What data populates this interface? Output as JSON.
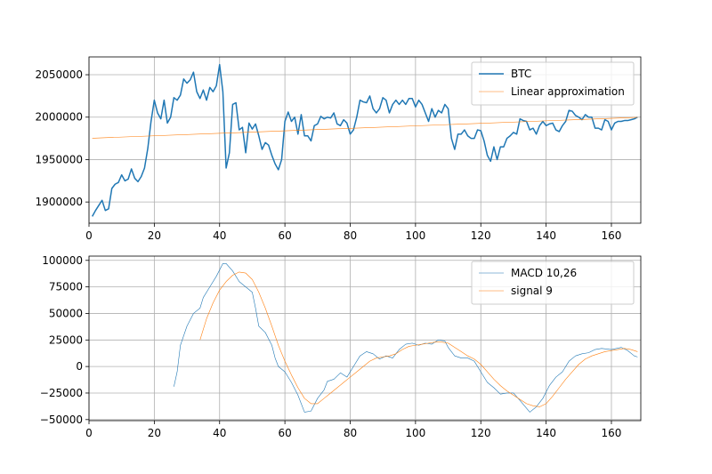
{
  "chart_data": [
    {
      "type": "line",
      "grid": true,
      "legend": "upper right",
      "xlim": [
        0,
        169
      ],
      "xticks": [
        0,
        20,
        40,
        60,
        80,
        100,
        120,
        140,
        160
      ],
      "ylim": [
        1875000,
        2071000
      ],
      "yticks": [
        1900000,
        1950000,
        2000000,
        2050000
      ],
      "series": [
        {
          "name": "BTC",
          "color": "#1f77b4",
          "x": [
            1,
            2,
            3,
            4,
            5,
            6,
            7,
            8,
            9,
            10,
            11,
            12,
            13,
            14,
            15,
            16,
            17,
            18,
            19,
            20,
            21,
            22,
            23,
            24,
            25,
            26,
            27,
            28,
            29,
            30,
            31,
            32,
            33,
            34,
            35,
            36,
            37,
            38,
            39,
            40,
            41,
            42,
            43,
            44,
            45,
            46,
            47,
            48,
            49,
            50,
            51,
            52,
            53,
            54,
            55,
            56,
            57,
            58,
            59,
            60,
            61,
            62,
            63,
            64,
            65,
            66,
            67,
            68,
            69,
            70,
            71,
            72,
            73,
            74,
            75,
            76,
            77,
            78,
            79,
            80,
            81,
            82,
            83,
            84,
            85,
            86,
            87,
            88,
            89,
            90,
            91,
            92,
            93,
            94,
            95,
            96,
            97,
            98,
            99,
            100,
            101,
            102,
            103,
            104,
            105,
            106,
            107,
            108,
            109,
            110,
            111,
            112,
            113,
            114,
            115,
            116,
            117,
            118,
            119,
            120,
            121,
            122,
            123,
            124,
            125,
            126,
            127,
            128,
            129,
            130,
            131,
            132,
            133,
            134,
            135,
            136,
            137,
            138,
            139,
            140,
            141,
            142,
            143,
            144,
            145,
            146,
            147,
            148,
            149,
            150,
            151,
            152,
            153,
            154,
            155,
            156,
            157,
            158,
            159,
            160,
            161,
            162,
            163,
            164,
            165,
            166,
            167,
            168
          ],
          "values": [
            1883000,
            1890000,
            1896000,
            1902000,
            1890000,
            1892000,
            1916000,
            1921000,
            1923000,
            1932000,
            1925000,
            1927000,
            1939000,
            1928000,
            1924000,
            1930000,
            1940000,
            1963000,
            1995000,
            2020000,
            2005000,
            1998000,
            2020000,
            1993000,
            2000000,
            2023000,
            2020000,
            2026000,
            2045000,
            2040000,
            2044000,
            2053000,
            2030000,
            2022000,
            2032000,
            2020000,
            2035000,
            2030000,
            2037000,
            2062000,
            2030000,
            1940000,
            1958000,
            2015000,
            2017000,
            1985000,
            1988000,
            1958000,
            1993000,
            1986000,
            1992000,
            1978000,
            1962000,
            1970000,
            1967000,
            1955000,
            1945000,
            1938000,
            1950000,
            1995000,
            2006000,
            1995000,
            2000000,
            1980000,
            2003000,
            1978000,
            1978000,
            1972000,
            1990000,
            1992000,
            2001000,
            1998000,
            2000000,
            1999000,
            2005000,
            1992000,
            1990000,
            1997000,
            1993000,
            1980000,
            1985000,
            2000000,
            2020000,
            2018000,
            2017000,
            2025000,
            2010000,
            2005000,
            2010000,
            2023000,
            2020000,
            2005000,
            2015000,
            2020000,
            2015000,
            2020000,
            2015000,
            2022000,
            2022000,
            2012000,
            2020000,
            2015000,
            2005000,
            1995000,
            2010000,
            2000000,
            2008000,
            2005000,
            2015000,
            2010000,
            1975000,
            1962000,
            1980000,
            1980000,
            1985000,
            1978000,
            1975000,
            1975000,
            1985000,
            1984000,
            1972000,
            1955000,
            1948000,
            1965000,
            1950000,
            1965000,
            1965000,
            1975000,
            1978000,
            1982000,
            1980000,
            1998000,
            1996000,
            1995000,
            1985000,
            1987000,
            1980000,
            1990000,
            1995000,
            1990000,
            1992000,
            1993000,
            1985000,
            1983000,
            1990000,
            1995000,
            2008000,
            2007000,
            2002000,
            2000000,
            1997000,
            2003000,
            2000000,
            2000000,
            1987000,
            1987000,
            1985000,
            1997000,
            1995000,
            1985000,
            1993000,
            1995000,
            1995000,
            1996000,
            1996000,
            1997000,
            1998000,
            2000000
          ]
        },
        {
          "name": "Linear approximation",
          "color": "#ff7f0e",
          "x": [
            1,
            168
          ],
          "values": [
            1975200,
            1999800
          ]
        }
      ]
    },
    {
      "type": "line",
      "grid": true,
      "legend": "upper right",
      "xlim": [
        0,
        169
      ],
      "xticks": [
        0,
        20,
        40,
        60,
        80,
        100,
        120,
        140,
        160
      ],
      "ylim": [
        -51000,
        104000
      ],
      "yticks": [
        {
          "value": -50000,
          "label": "−50000"
        },
        {
          "value": -25000,
          "label": "−25000"
        },
        0,
        25000,
        50000,
        75000,
        100000
      ],
      "series": [
        {
          "name": "MACD 10,26",
          "color": "#1f77b4",
          "x": [
            26,
            27,
            28,
            30,
            32,
            34,
            35,
            37,
            39,
            41,
            42,
            44,
            46,
            48,
            50,
            51,
            52,
            54,
            56,
            57,
            58,
            60,
            62,
            64,
            66,
            68,
            70,
            72,
            73,
            75,
            77,
            79,
            81,
            83,
            85,
            87,
            89,
            91,
            93,
            95,
            97,
            99,
            101,
            103,
            105,
            107,
            109,
            110,
            112,
            114,
            116,
            118,
            120,
            122,
            124,
            126,
            128,
            130,
            132,
            135,
            137,
            139,
            141,
            143,
            145,
            147,
            149,
            151,
            153,
            155,
            157,
            160,
            163,
            165,
            167,
            168
          ],
          "values": [
            -19000,
            -5000,
            20000,
            38000,
            50000,
            55000,
            65000,
            75000,
            85000,
            97000,
            97000,
            90000,
            80000,
            75000,
            70000,
            55000,
            38000,
            32000,
            20000,
            8000,
            0,
            -5000,
            -15000,
            -27000,
            -43000,
            -42000,
            -30000,
            -22000,
            -14000,
            -12000,
            -6000,
            -10000,
            0,
            10000,
            14000,
            12000,
            7000,
            10000,
            8000,
            16000,
            21000,
            22000,
            20000,
            22000,
            21000,
            25000,
            24000,
            18000,
            10000,
            8000,
            8000,
            5000,
            -5000,
            -15000,
            -20000,
            -26000,
            -25000,
            -25000,
            -32000,
            -43000,
            -38000,
            -30000,
            -18000,
            -10000,
            -5000,
            5000,
            10000,
            12000,
            13000,
            16000,
            17000,
            16000,
            18000,
            15000,
            10000,
            9000
          ]
        },
        {
          "name": "signal 9",
          "color": "#ff7f0e",
          "x": [
            34,
            36,
            38,
            40,
            42,
            44,
            46,
            48,
            50,
            52,
            54,
            56,
            58,
            60,
            62,
            64,
            66,
            68,
            70,
            72,
            74,
            76,
            78,
            80,
            82,
            84,
            86,
            88,
            90,
            92,
            94,
            96,
            98,
            100,
            102,
            104,
            106,
            108,
            110,
            112,
            114,
            116,
            118,
            120,
            122,
            124,
            126,
            128,
            130,
            132,
            134,
            136,
            138,
            140,
            142,
            144,
            146,
            148,
            150,
            152,
            154,
            156,
            158,
            160,
            162,
            164,
            166,
            168
          ],
          "values": [
            25000,
            45000,
            60000,
            72000,
            80000,
            86000,
            89000,
            88000,
            82000,
            70000,
            55000,
            38000,
            20000,
            5000,
            -8000,
            -20000,
            -30000,
            -35000,
            -35000,
            -30000,
            -25000,
            -20000,
            -15000,
            -10000,
            -5000,
            0,
            5000,
            8000,
            9000,
            10000,
            12000,
            16000,
            19000,
            20000,
            21000,
            22000,
            23000,
            23000,
            22000,
            18000,
            14000,
            10000,
            7000,
            2000,
            -5000,
            -12000,
            -18000,
            -23000,
            -27000,
            -31000,
            -35000,
            -37000,
            -38000,
            -35000,
            -28000,
            -20000,
            -12000,
            -5000,
            2000,
            7000,
            10000,
            12000,
            14000,
            15000,
            16000,
            17000,
            16000,
            14000
          ]
        }
      ]
    }
  ]
}
